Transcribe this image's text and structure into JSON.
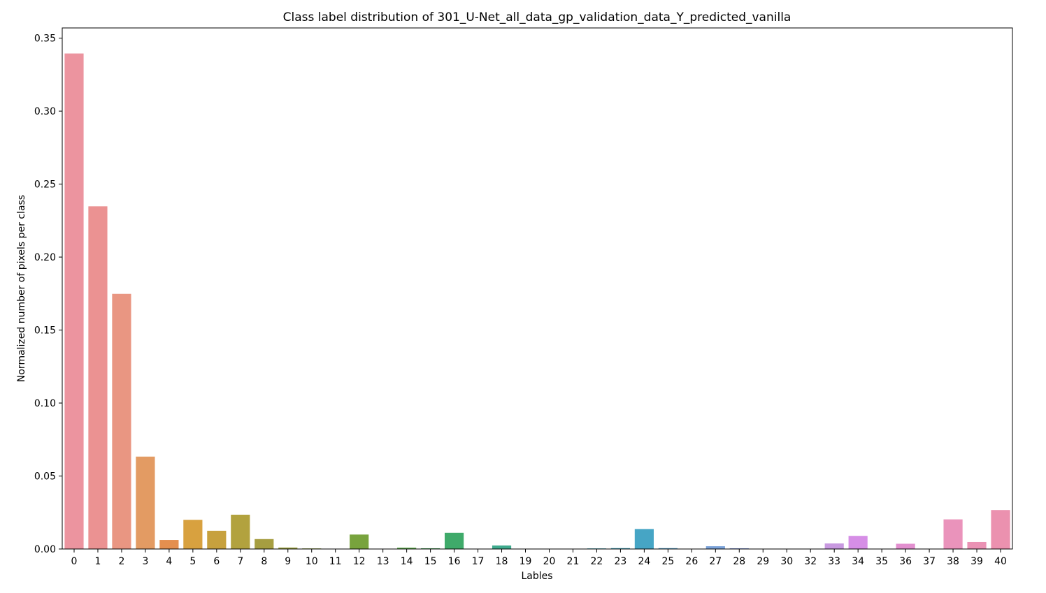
{
  "chart_data": {
    "type": "bar",
    "title": "Class label distribution of 301_U-Net_all_data_gp_validation_data_Y_predicted_vanilla",
    "xlabel": "Lables",
    "ylabel": "Normalized number of pixels per class",
    "ylim": [
      0,
      0.357
    ],
    "yticks": [
      "0.00",
      "0.05",
      "0.10",
      "0.15",
      "0.20",
      "0.25",
      "0.30",
      "0.35"
    ],
    "grid": false,
    "categories": [
      "0",
      "1",
      "2",
      "3",
      "4",
      "5",
      "6",
      "7",
      "8",
      "9",
      "10",
      "11",
      "12",
      "13",
      "14",
      "15",
      "16",
      "17",
      "18",
      "19",
      "20",
      "21",
      "22",
      "23",
      "24",
      "25",
      "26",
      "27",
      "28",
      "29",
      "30",
      "32",
      "33",
      "34",
      "35",
      "36",
      "37",
      "38",
      "39",
      "40"
    ],
    "values": [
      0.3395,
      0.2348,
      0.1748,
      0.0633,
      0.0062,
      0.02,
      0.0125,
      0.0235,
      0.0068,
      0.001,
      0.0004,
      0.0001,
      0.0099,
      0.0001,
      0.0009,
      0.0005,
      0.0111,
      0.0001,
      0.0024,
      0.0001,
      0.0001,
      0.0001,
      0.0004,
      0.0006,
      0.0137,
      0.0006,
      0.0002,
      0.0019,
      0.0005,
      0.0001,
      0.0001,
      0.0002,
      0.0038,
      0.009,
      0.0001,
      0.0036,
      0.0001,
      0.0203,
      0.0048,
      0.0267
    ],
    "colors": [
      "#ec949f",
      "#eb9292",
      "#e99682",
      "#e39b63",
      "#e48f4f",
      "#d8a13f",
      "#c7a13e",
      "#b2a23e",
      "#a69e41",
      "#9aa03e",
      "#8fa23f",
      "#84a33e",
      "#78a33d",
      "#6aa842",
      "#5aa849",
      "#4ea95c",
      "#3faa6a",
      "#40a97f",
      "#3eaa8d",
      "#3fab9e",
      "#3ea9a7",
      "#3ea9b2",
      "#3ea8bb",
      "#40a5c1",
      "#46a5c5",
      "#5ba5cf",
      "#6aa2d6",
      "#7aa2d8",
      "#8da0df",
      "#9b9ce6",
      "#b49be6",
      "#bd99e6",
      "#c899e0",
      "#d68ee6",
      "#dc8cd9",
      "#e28fcf",
      "#e792c7",
      "#ea93bb",
      "#ea92b4",
      "#eb91af"
    ]
  }
}
